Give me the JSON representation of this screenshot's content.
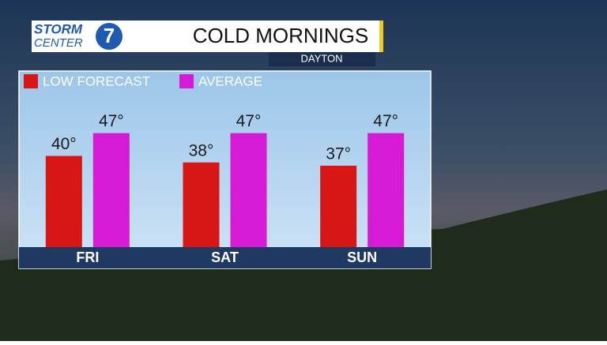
{
  "logo": {
    "line1": "STORM",
    "line2": "CENTER",
    "number": "7"
  },
  "chart_data": {
    "type": "bar",
    "title": "COLD MORNINGS",
    "subtitle": "DAYTON",
    "categories": [
      "FRI",
      "SAT",
      "SUN"
    ],
    "series": [
      {
        "name": "LOW FORECAST",
        "color": "#d81616",
        "values": [
          40,
          38,
          37
        ],
        "value_labels": [
          "40°",
          "38°",
          "37°"
        ]
      },
      {
        "name": "AVERAGE",
        "color": "#d61ad6",
        "values": [
          47,
          47,
          47
        ],
        "value_labels": [
          "47°",
          "47°",
          "47°"
        ]
      }
    ],
    "ylim": [
      12,
      60
    ],
    "legend": "top-left"
  }
}
